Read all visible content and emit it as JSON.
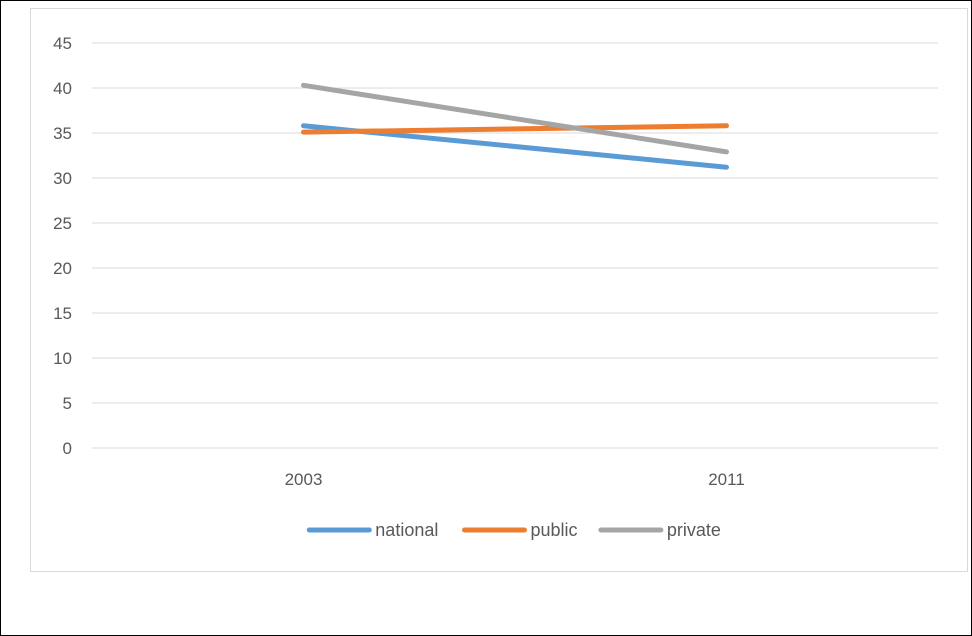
{
  "chart_data": {
    "type": "line",
    "categories": [
      "2003",
      "2011"
    ],
    "ylim": [
      0,
      45
    ],
    "yticks": [
      0,
      5,
      10,
      15,
      20,
      25,
      30,
      35,
      40,
      45
    ],
    "grid": true,
    "legend_position": "bottom",
    "series": [
      {
        "name": "national",
        "color": "#5b9bd5",
        "values": [
          35.8,
          31.2
        ]
      },
      {
        "name": "public",
        "color": "#ed7d31",
        "values": [
          35.1,
          35.8
        ]
      },
      {
        "name": "private",
        "color": "#a5a5a5",
        "values": [
          40.3,
          32.9
        ]
      }
    ]
  }
}
